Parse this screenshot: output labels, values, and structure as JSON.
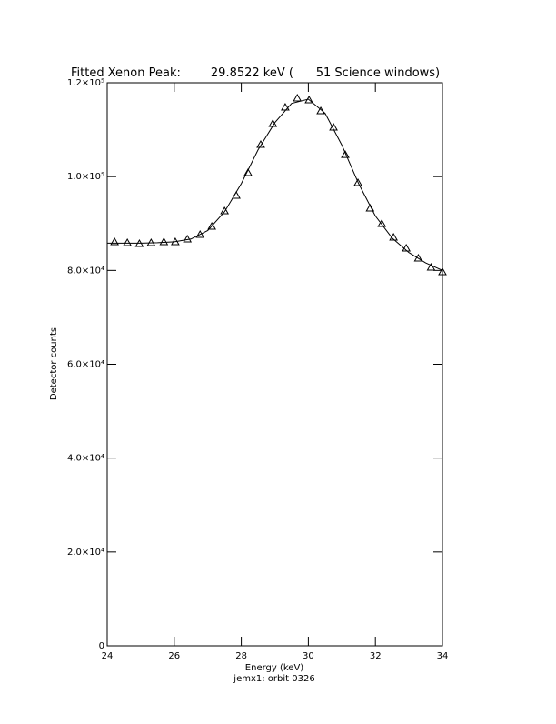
{
  "chart_data": {
    "type": "scatter",
    "title": "Fitted Xenon Peak:        29.8522 keV (      51 Science windows)",
    "xlabel": "Energy (keV)",
    "subtitle": "jemx1: orbit 0326",
    "ylabel": "Detector counts",
    "xlim": [
      24,
      34
    ],
    "ylim": [
      0,
      120000
    ],
    "xticks": [
      24,
      26,
      28,
      30,
      32,
      34
    ],
    "yticks": [
      0,
      {
        "value": 20000,
        "label": "2.0×10⁴"
      },
      {
        "value": 40000,
        "label": "4.0×10⁴"
      },
      {
        "value": 60000,
        "label": "6.0×10⁴"
      },
      {
        "value": 80000,
        "label": "8.0×10⁴"
      },
      {
        "value": 100000,
        "label": "1.0×10⁵"
      },
      {
        "value": 120000,
        "label": "1.2×10⁵"
      }
    ],
    "series": [
      {
        "kind": "points",
        "color": "#000000",
        "x": [
          24.22,
          24.6,
          24.96,
          25.31,
          25.69,
          26.03,
          26.39,
          26.77,
          27.12,
          27.5,
          27.85,
          28.2,
          28.58,
          28.94,
          29.31,
          29.67,
          30.02,
          30.37,
          30.75,
          31.1,
          31.48,
          31.84,
          32.19,
          32.54,
          32.92,
          33.28,
          33.66,
          34.0
        ],
        "values": [
          86070,
          85880,
          85690,
          85880,
          86070,
          86070,
          86650,
          87620,
          89370,
          92670,
          95960,
          100810,
          106820,
          111280,
          114770,
          116700,
          116320,
          113990,
          110500,
          104670,
          98670,
          93240,
          89950,
          87040,
          84720,
          82580,
          80650,
          79680
        ]
      },
      {
        "kind": "line",
        "color": "#000000",
        "x": [
          24,
          24.5,
          25,
          25.5,
          26,
          26.5,
          27,
          27.5,
          28,
          28.5,
          29,
          29.5,
          30,
          30.5,
          31,
          31.5,
          32,
          32.5,
          33,
          33.5,
          34
        ],
        "values": [
          85800,
          85800,
          85800,
          85900,
          86100,
          86700,
          88500,
          92500,
          98500,
          105700,
          111500,
          115600,
          116500,
          113500,
          106700,
          98500,
          91600,
          86900,
          83800,
          81600,
          80000
        ]
      }
    ]
  }
}
